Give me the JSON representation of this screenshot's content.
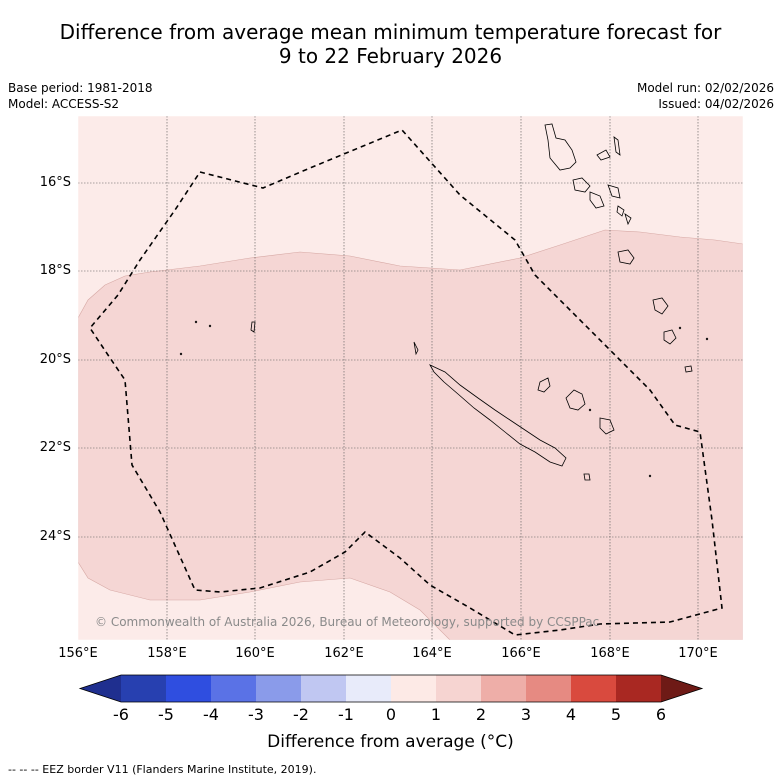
{
  "title_line1": "Difference from average mean minimum temperature forecast for",
  "title_line2": "9 to 22 February 2026",
  "base_period": "Base period: 1981-2018",
  "model": "Model: ACCESS-S2",
  "model_run": "Model run: 02/02/2026",
  "issued": "Issued: 04/02/2026",
  "latitude_labels": [
    "16°S",
    "18°S",
    "20°S",
    "22°S",
    "24°S"
  ],
  "longitude_labels": [
    "156°E",
    "158°E",
    "160°E",
    "162°E",
    "164°E",
    "166°E",
    "168°E",
    "170°E"
  ],
  "credit": "© Commonwealth of Australia 2026, Bureau of Meteorology, supported by CCSPPac",
  "colorbar": {
    "labels": [
      "-6",
      "-5",
      "-4",
      "-3",
      "-2",
      "-1",
      "0",
      "1",
      "2",
      "3",
      "4",
      "5",
      "6"
    ],
    "colors": [
      "#1f2f8f",
      "#2740b0",
      "#2f4ee0",
      "#5a72e6",
      "#8a9bea",
      "#c0c7f2",
      "#e8ebfa",
      "#fdeae6",
      "#f6d4d1",
      "#eeaea8",
      "#e68a82",
      "#d94a3e",
      "#a92822",
      "#6e1a16"
    ],
    "title": "Difference from average (°C)"
  },
  "map_colors": {
    "band_0_1": "#fcebe9",
    "band_1_2": "#f5d6d4",
    "border": "#000000"
  },
  "footer": "--  --  -- EEZ border V11 (Flanders Marine Institute, 2019)."
}
